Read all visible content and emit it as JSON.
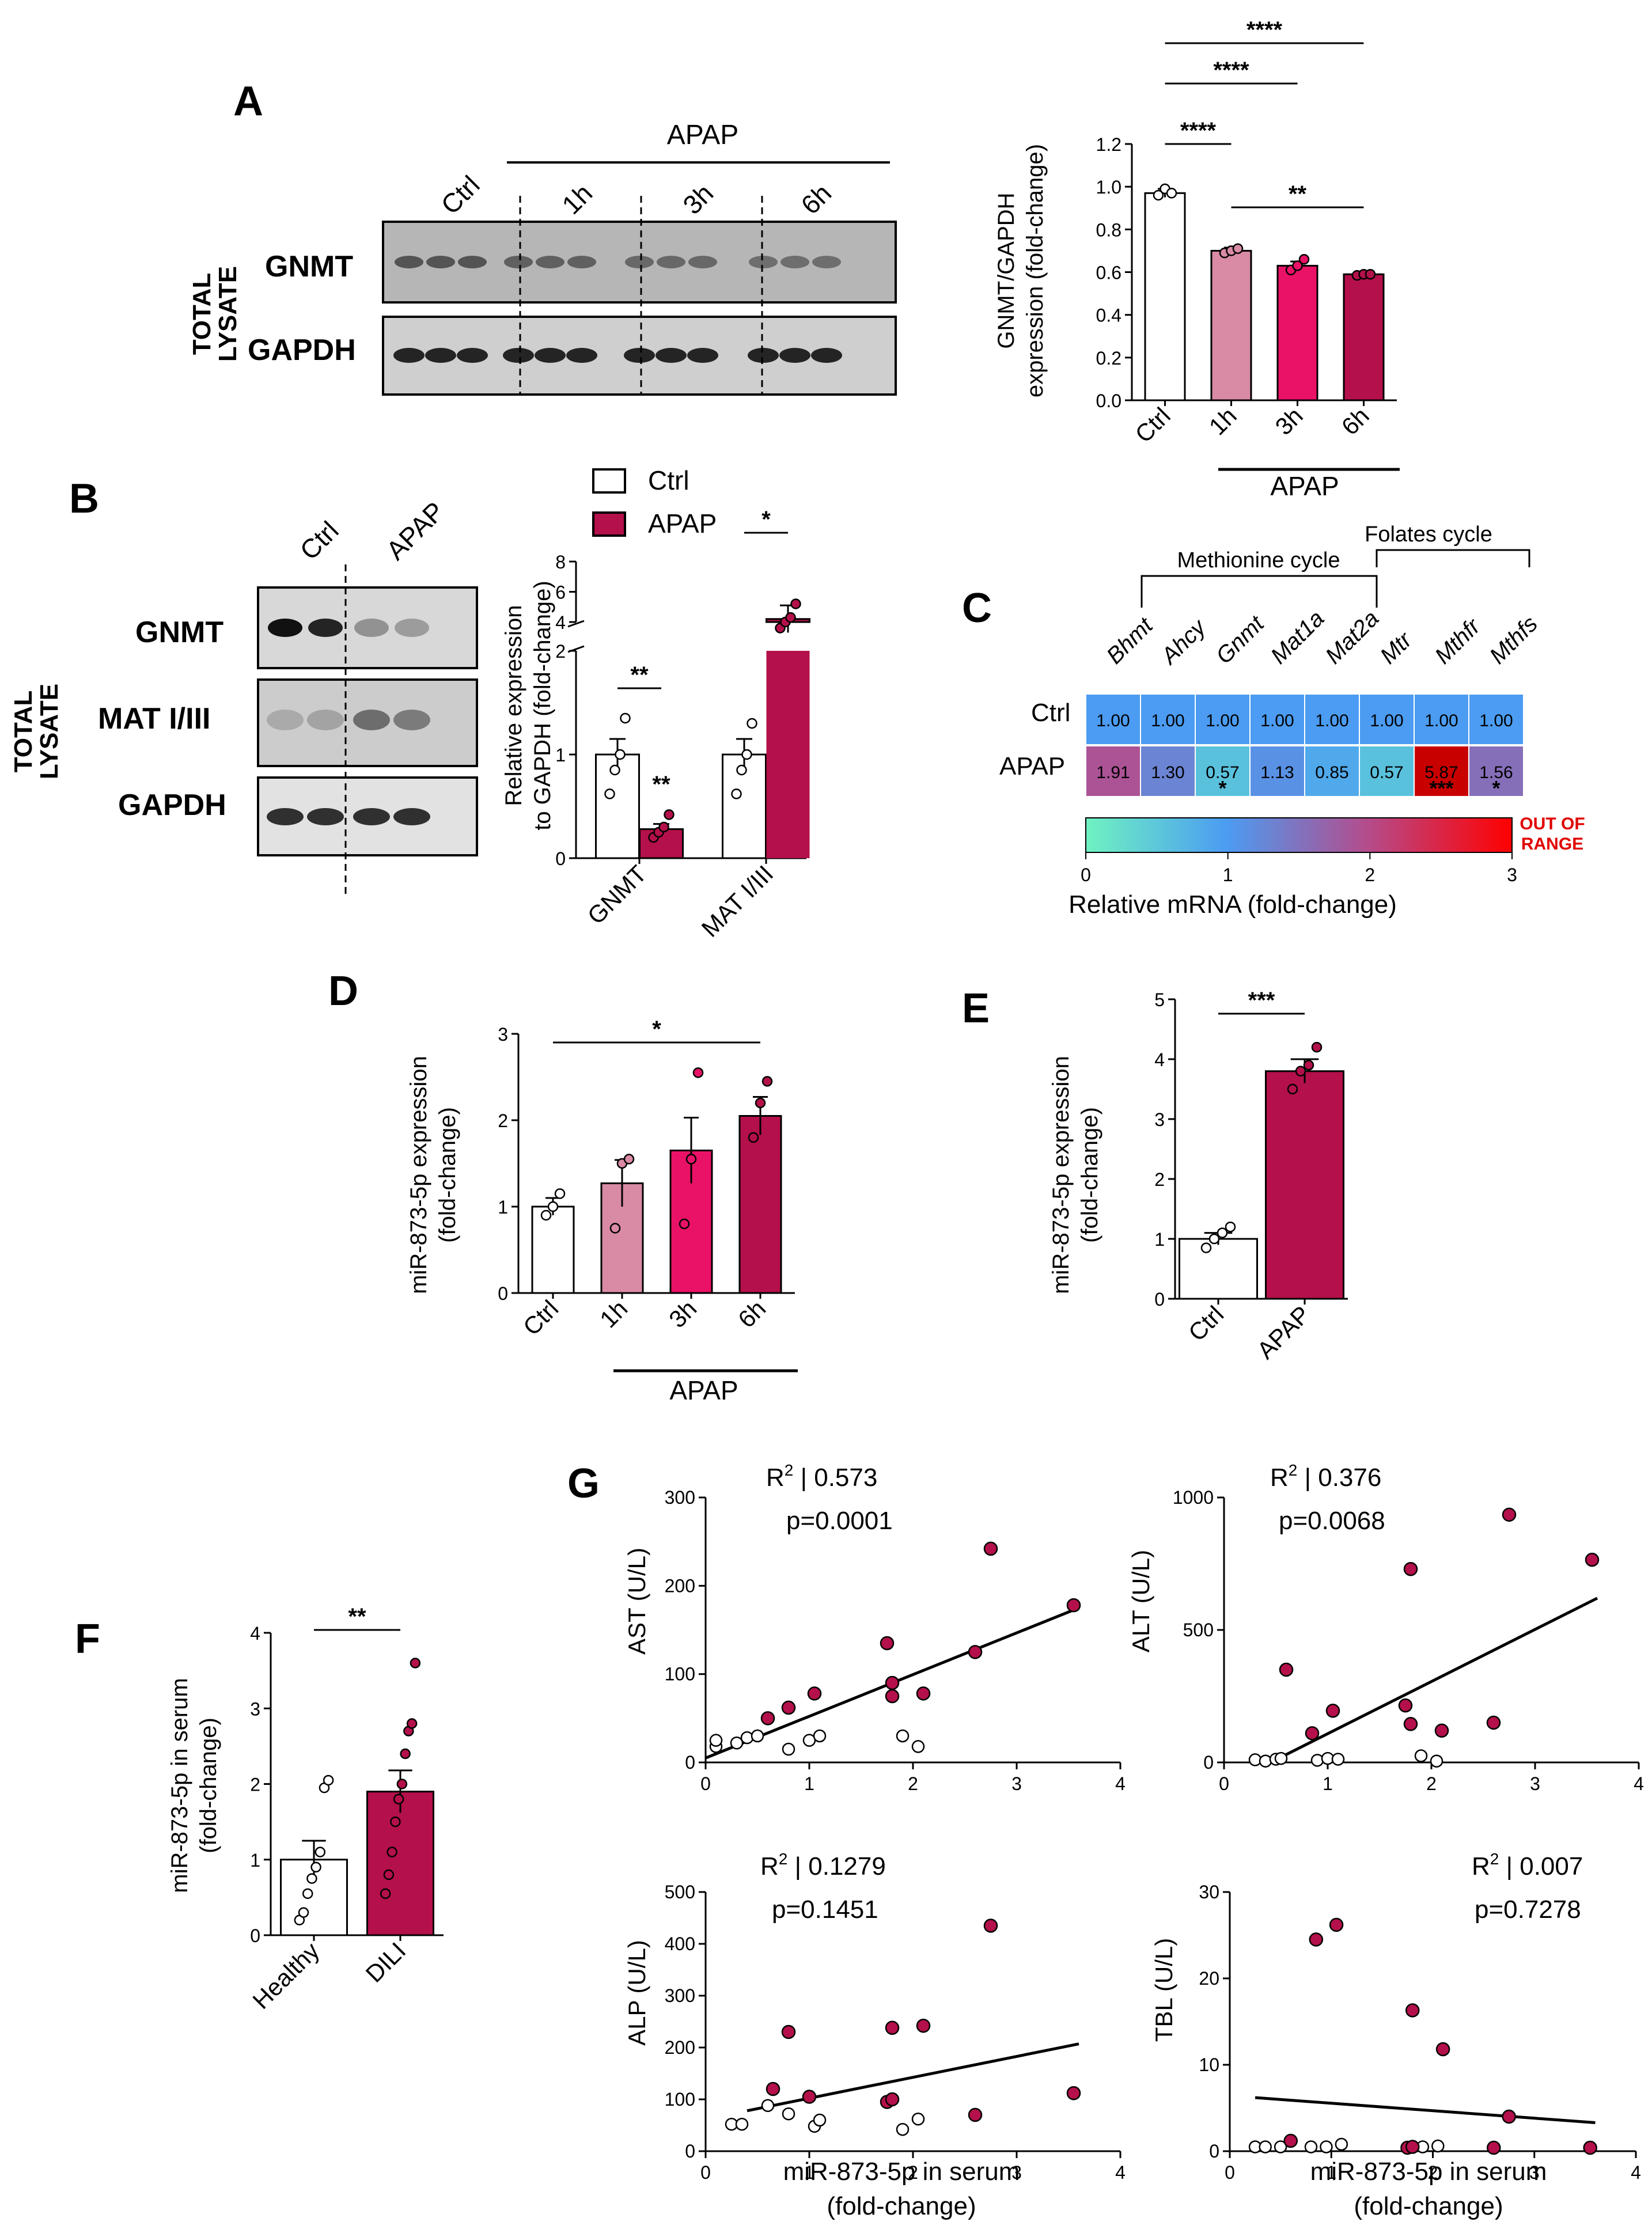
{
  "colors": {
    "ctrl": "#ffffff",
    "h1": "#d98aa5",
    "h3": "#ea1266",
    "h6": "#b4104b",
    "apap": "#b4104b",
    "ink": "#000000",
    "heat_low": "#6ff2c1",
    "heat_mid1": "#4b9cf2",
    "heat_mid2": "#b44c8c",
    "heat_high": "#ff0000",
    "oor": "#e00000"
  },
  "panel_letters": {
    "a": "A",
    "b": "B",
    "c": "C",
    "d": "D",
    "e": "E",
    "f": "F",
    "g": "G"
  },
  "blot_a": {
    "group_label": "APAP",
    "lanes": [
      "Ctrl",
      "1h",
      "3h",
      "6h"
    ],
    "rows": [
      "GNMT",
      "GAPDH"
    ],
    "side_label": [
      "TOTAL",
      "LYSATE"
    ]
  },
  "blot_b": {
    "lanes": [
      "Ctrl",
      "APAP"
    ],
    "rows": [
      "GNMT",
      "MAT I/III",
      "GAPDH"
    ],
    "side_label": [
      "TOTAL",
      "LYSATE"
    ]
  },
  "chart_data": [
    {
      "id": "A",
      "type": "bar",
      "categories": [
        "Ctrl",
        "1h",
        "3h",
        "6h"
      ],
      "values": [
        0.97,
        0.7,
        0.63,
        0.59
      ],
      "errors": [
        0.02,
        0.015,
        0.02,
        0.005
      ],
      "points": [
        [
          0.96,
          0.99,
          0.97
        ],
        [
          0.69,
          0.7,
          0.71
        ],
        [
          0.61,
          0.63,
          0.66
        ],
        [
          0.585,
          0.59,
          0.59
        ]
      ],
      "ylabel": [
        "GNMT/GAPDH",
        "expression (fold-change)"
      ],
      "ylim": [
        0,
        1.2
      ],
      "yticks": [
        "0.0",
        "0.2",
        "0.4",
        "0.6",
        "0.8",
        "1.0",
        "1.2"
      ],
      "group_label": "APAP",
      "sig": [
        {
          "from": 0,
          "to": 1,
          "label": "****"
        },
        {
          "from": 0,
          "to": 2,
          "label": "****"
        },
        {
          "from": 0,
          "to": 3,
          "label": "****"
        },
        {
          "from": 1,
          "to": 3,
          "label": "**"
        }
      ]
    },
    {
      "id": "B",
      "type": "bar",
      "categories": [
        "GNMT",
        "MAT I/III"
      ],
      "series": [
        {
          "name": "Ctrl",
          "values": [
            1.0,
            1.0
          ],
          "errors": [
            0.15,
            0.15
          ],
          "points": [
            [
              0.62,
              0.85,
              1.0,
              1.35
            ],
            [
              0.62,
              0.85,
              1.0,
              1.3
            ]
          ]
        },
        {
          "name": "APAP",
          "values": [
            0.28,
            4.2
          ],
          "errors": [
            0.05,
            0.9
          ],
          "points": [
            [
              0.2,
              0.25,
              0.3,
              0.42
            ],
            [
              3.6,
              4.0,
              4.3,
              5.2
            ]
          ]
        }
      ],
      "ylabel": [
        "Relative expression",
        "to GAPDH (fold-change)"
      ],
      "ylim_lower": [
        0,
        2
      ],
      "ylim_upper": [
        2,
        8
      ],
      "yticks_lower": [
        "0",
        "1",
        "2"
      ],
      "yticks_upper": [
        "4",
        "6",
        "8"
      ],
      "legend": [
        "Ctrl",
        "APAP"
      ],
      "sig": [
        {
          "group": 0,
          "label": "**"
        },
        {
          "group": 1,
          "label": "*"
        }
      ],
      "bar_star": "**"
    },
    {
      "id": "C",
      "type": "heatmap",
      "groups": [
        {
          "label": "Methionine cycle"
        },
        {
          "label": "Folates cycle"
        }
      ],
      "columns": [
        "Bhmt",
        "Ahcy",
        "Gnmt",
        "Mat1a",
        "Mat2a",
        "Mtr",
        "Mthfr",
        "Mthfs"
      ],
      "rows": [
        "Ctrl",
        "APAP"
      ],
      "values": [
        [
          "1.00",
          "1.00",
          "1.00",
          "1.00",
          "1.00",
          "1.00",
          "1.00",
          "1.00"
        ],
        [
          "1.91",
          "1.30",
          "0.57",
          "1.13",
          "0.85",
          "0.57",
          "5.87",
          "1.56"
        ]
      ],
      "numeric": [
        [
          1,
          1,
          1,
          1,
          1,
          1,
          1,
          1
        ],
        [
          1.91,
          1.3,
          0.57,
          1.13,
          0.85,
          0.57,
          5.87,
          1.56
        ]
      ],
      "stars": [
        "",
        "",
        "*",
        "",
        "",
        "",
        "***",
        "*"
      ],
      "colorbar": {
        "ticks": [
          "0",
          "1",
          "2",
          "3"
        ],
        "label": "Relative mRNA (fold-change)",
        "oor": [
          "OUT OF",
          "RANGE"
        ]
      }
    },
    {
      "id": "D",
      "type": "bar",
      "categories": [
        "Ctrl",
        "1h",
        "3h",
        "6h"
      ],
      "values": [
        1.0,
        1.27,
        1.65,
        2.05
      ],
      "errors": [
        0.1,
        0.27,
        0.38,
        0.22
      ],
      "points": [
        [
          0.9,
          1.0,
          1.15
        ],
        [
          0.75,
          1.5,
          1.55
        ],
        [
          0.8,
          1.55,
          2.55
        ],
        [
          1.8,
          2.2,
          2.45
        ]
      ],
      "ylabel": [
        "miR-873-5p expression",
        "(fold-change)"
      ],
      "ylim": [
        0,
        3
      ],
      "yticks": [
        "0",
        "1",
        "2",
        "3"
      ],
      "group_label": "APAP",
      "sig": [
        {
          "from": 0,
          "to": 3,
          "label": "*"
        }
      ]
    },
    {
      "id": "E",
      "type": "bar",
      "categories": [
        "Ctrl",
        "APAP"
      ],
      "values": [
        1.0,
        3.8
      ],
      "errors": [
        0.1,
        0.2
      ],
      "points": [
        [
          0.85,
          1.0,
          1.1,
          1.2
        ],
        [
          3.5,
          3.8,
          3.9,
          4.2
        ]
      ],
      "ylabel": [
        "miR-873-5p expression",
        "(fold-change)"
      ],
      "ylim": [
        0,
        5
      ],
      "yticks": [
        "0",
        "1",
        "2",
        "3",
        "4",
        "5"
      ],
      "sig": [
        {
          "from": 0,
          "to": 1,
          "label": "***"
        }
      ]
    },
    {
      "id": "F",
      "type": "bar",
      "categories": [
        "Healthy",
        "DILI"
      ],
      "values": [
        1.0,
        1.9
      ],
      "errors": [
        0.25,
        0.28
      ],
      "points": [
        [
          0.2,
          0.3,
          0.55,
          0.75,
          0.9,
          1.1,
          1.95,
          2.05
        ],
        [
          0.55,
          0.8,
          1.1,
          1.5,
          1.8,
          2.0,
          2.4,
          2.7,
          2.8,
          3.6
        ]
      ],
      "ylabel": [
        "miR-873-5p in serum",
        "(fold-change)"
      ],
      "ylim": [
        0,
        4
      ],
      "yticks": [
        "0",
        "1",
        "2",
        "3",
        "4"
      ],
      "sig": [
        {
          "from": 0,
          "to": 1,
          "label": "**"
        }
      ]
    },
    {
      "id": "G1",
      "type": "scatter",
      "ylabel": "AST (U/L)",
      "xlim": [
        0,
        4
      ],
      "ylim": [
        0,
        300
      ],
      "xticks": [
        "0",
        "1",
        "2",
        "3",
        "4"
      ],
      "yticks": [
        "0",
        "100",
        "200",
        "300"
      ],
      "r2_label": "R",
      "r2_value": " | 0.573",
      "p_label": "p=0.0001",
      "healthy": [
        [
          0.1,
          18
        ],
        [
          0.1,
          25
        ],
        [
          0.3,
          22
        ],
        [
          0.4,
          28
        ],
        [
          0.5,
          30
        ],
        [
          0.8,
          15
        ],
        [
          1.0,
          25
        ],
        [
          1.1,
          30
        ],
        [
          1.9,
          30
        ],
        [
          2.05,
          18
        ]
      ],
      "dili": [
        [
          0.6,
          50
        ],
        [
          0.8,
          62
        ],
        [
          1.05,
          78
        ],
        [
          1.75,
          135
        ],
        [
          1.8,
          90
        ],
        [
          1.8,
          75
        ],
        [
          2.1,
          78
        ],
        [
          2.6,
          125
        ],
        [
          2.75,
          242
        ],
        [
          3.55,
          178
        ]
      ],
      "fit": [
        [
          0.0,
          5
        ],
        [
          3.6,
          175
        ]
      ]
    },
    {
      "id": "G2",
      "type": "scatter",
      "ylabel": "ALT (U/L)",
      "xlim": [
        0,
        4
      ],
      "ylim": [
        0,
        1000
      ],
      "xticks": [
        "0",
        "1",
        "2",
        "3",
        "4"
      ],
      "yticks": [
        "0",
        "500",
        "1000"
      ],
      "r2_label": "R",
      "r2_value": " | 0.376",
      "p_label": "p=0.0068",
      "healthy": [
        [
          0.3,
          10
        ],
        [
          0.4,
          5
        ],
        [
          0.5,
          12
        ],
        [
          0.55,
          15
        ],
        [
          0.9,
          8
        ],
        [
          1.0,
          15
        ],
        [
          1.1,
          12
        ],
        [
          1.9,
          25
        ],
        [
          2.05,
          5
        ]
      ],
      "dili": [
        [
          0.6,
          350
        ],
        [
          0.85,
          110
        ],
        [
          1.05,
          195
        ],
        [
          1.75,
          215
        ],
        [
          1.8,
          730
        ],
        [
          1.8,
          145
        ],
        [
          2.1,
          120
        ],
        [
          2.6,
          150
        ],
        [
          2.75,
          935
        ],
        [
          3.55,
          765
        ]
      ],
      "fit": [
        [
          0.5,
          10
        ],
        [
          3.6,
          620
        ]
      ]
    },
    {
      "id": "G3",
      "type": "scatter",
      "ylabel": "ALP (U/L)",
      "xlim": [
        0,
        4
      ],
      "ylim": [
        0,
        500
      ],
      "xticks": [
        "0",
        "1",
        "2",
        "3",
        "4"
      ],
      "yticks": [
        "0",
        "100",
        "200",
        "300",
        "400",
        "500"
      ],
      "r2_label": "R",
      "r2_value": " | 0.1279",
      "p_label": "p=0.1451",
      "healthy": [
        [
          0.25,
          52
        ],
        [
          0.35,
          52
        ],
        [
          0.6,
          88
        ],
        [
          0.8,
          72
        ],
        [
          1.05,
          48
        ],
        [
          1.1,
          60
        ],
        [
          1.9,
          42
        ],
        [
          2.05,
          62
        ]
      ],
      "dili": [
        [
          0.65,
          120
        ],
        [
          0.8,
          230
        ],
        [
          1.0,
          105
        ],
        [
          1.75,
          95
        ],
        [
          1.8,
          100
        ],
        [
          1.8,
          238
        ],
        [
          2.1,
          242
        ],
        [
          2.6,
          70
        ],
        [
          2.75,
          435
        ],
        [
          3.55,
          112
        ]
      ],
      "fit": [
        [
          0.4,
          78
        ],
        [
          3.6,
          207
        ]
      ]
    },
    {
      "id": "G4",
      "type": "scatter",
      "ylabel": "TBL (U/L)",
      "xlim": [
        0,
        4
      ],
      "ylim": [
        0,
        30
      ],
      "xticks": [
        "0",
        "1",
        "2",
        "3",
        "4"
      ],
      "yticks": [
        "0",
        "10",
        "20",
        "30"
      ],
      "r2_label": "R",
      "r2_value": " | 0.007",
      "p_label": "p=0.7278",
      "healthy": [
        [
          0.25,
          0.5
        ],
        [
          0.35,
          0.5
        ],
        [
          0.5,
          0.5
        ],
        [
          0.8,
          0.5
        ],
        [
          0.95,
          0.5
        ],
        [
          1.1,
          0.8
        ],
        [
          1.9,
          0.5
        ],
        [
          2.05,
          0.6
        ]
      ],
      "dili": [
        [
          0.6,
          1.2
        ],
        [
          0.85,
          24.5
        ],
        [
          1.05,
          26.2
        ],
        [
          1.75,
          0.4
        ],
        [
          1.8,
          16.3
        ],
        [
          1.8,
          0.5
        ],
        [
          2.1,
          11.8
        ],
        [
          2.6,
          0.4
        ],
        [
          2.75,
          4.0
        ],
        [
          3.55,
          0.4
        ]
      ],
      "fit": [
        [
          0.25,
          6.2
        ],
        [
          3.6,
          3.3
        ]
      ]
    }
  ],
  "g_xlabel": [
    "miR-873-5p in serum",
    "(fold-change)"
  ]
}
